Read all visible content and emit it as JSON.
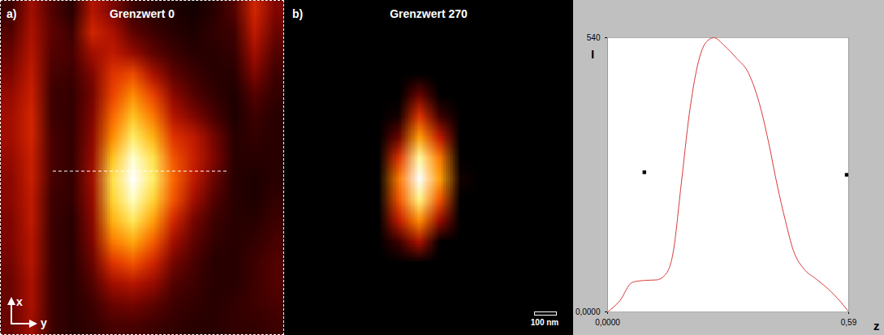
{
  "chart_data": [
    {
      "type": "heatmap",
      "panel": "a)",
      "title": "Grenzwert 0",
      "threshold": 0,
      "color_range": [
        0,
        540
      ],
      "axis_labels": {
        "x": "x",
        "y": "y"
      },
      "cells": [
        [
          60,
          150,
          80,
          40,
          170,
          120,
          60,
          40,
          30,
          20,
          40,
          80,
          200,
          120
        ],
        [
          80,
          160,
          90,
          60,
          200,
          160,
          90,
          60,
          40,
          30,
          50,
          60,
          180,
          100
        ],
        [
          100,
          170,
          80,
          70,
          150,
          180,
          140,
          90,
          60,
          40,
          40,
          50,
          150,
          80
        ],
        [
          120,
          180,
          70,
          60,
          120,
          220,
          250,
          160,
          90,
          60,
          40,
          40,
          120,
          60
        ],
        [
          140,
          190,
          60,
          50,
          110,
          240,
          320,
          240,
          130,
          80,
          50,
          30,
          80,
          50
        ],
        [
          150,
          200,
          60,
          50,
          120,
          280,
          380,
          300,
          170,
          120,
          70,
          30,
          60,
          40
        ],
        [
          150,
          200,
          70,
          50,
          130,
          320,
          440,
          360,
          220,
          180,
          110,
          40,
          50,
          40
        ],
        [
          140,
          190,
          70,
          50,
          140,
          380,
          510,
          420,
          260,
          190,
          120,
          40,
          40,
          40
        ],
        [
          130,
          190,
          70,
          50,
          150,
          420,
          540,
          440,
          280,
          180,
          100,
          40,
          30,
          40
        ],
        [
          130,
          180,
          60,
          50,
          140,
          400,
          500,
          400,
          260,
          150,
          80,
          40,
          30,
          50
        ],
        [
          120,
          180,
          60,
          40,
          130,
          360,
          430,
          340,
          200,
          110,
          60,
          40,
          40,
          60
        ],
        [
          120,
          170,
          60,
          40,
          120,
          300,
          350,
          270,
          150,
          90,
          50,
          40,
          50,
          70
        ],
        [
          110,
          170,
          60,
          40,
          100,
          220,
          260,
          200,
          110,
          70,
          40,
          40,
          60,
          80
        ],
        [
          100,
          160,
          60,
          40,
          80,
          150,
          170,
          140,
          80,
          60,
          40,
          40,
          60,
          80
        ],
        [
          100,
          160,
          60,
          40,
          60,
          100,
          110,
          90,
          60,
          50,
          40,
          50,
          60,
          70
        ],
        [
          100,
          150,
          60,
          40,
          50,
          70,
          70,
          60,
          50,
          40,
          40,
          50,
          50,
          60
        ]
      ]
    },
    {
      "type": "heatmap",
      "panel": "b)",
      "title": "Grenzwert 270",
      "threshold": 270,
      "color_range": [
        270,
        540
      ],
      "scale_bar": "100 nm",
      "cells": [
        [
          60,
          150,
          80,
          40,
          170,
          120,
          60,
          40,
          30,
          20,
          40,
          80,
          200,
          120
        ],
        [
          80,
          160,
          90,
          60,
          200,
          160,
          90,
          60,
          40,
          30,
          50,
          60,
          180,
          100
        ],
        [
          100,
          170,
          80,
          70,
          150,
          180,
          140,
          90,
          60,
          40,
          40,
          50,
          150,
          80
        ],
        [
          120,
          180,
          70,
          60,
          120,
          220,
          250,
          160,
          90,
          60,
          40,
          40,
          120,
          60
        ],
        [
          140,
          190,
          60,
          50,
          110,
          240,
          320,
          240,
          130,
          80,
          50,
          30,
          80,
          50
        ],
        [
          150,
          200,
          60,
          50,
          120,
          280,
          380,
          300,
          170,
          120,
          70,
          30,
          60,
          40
        ],
        [
          150,
          200,
          70,
          50,
          130,
          320,
          440,
          360,
          220,
          180,
          110,
          40,
          50,
          40
        ],
        [
          140,
          190,
          70,
          50,
          140,
          380,
          510,
          420,
          260,
          190,
          120,
          40,
          40,
          40
        ],
        [
          130,
          190,
          70,
          50,
          150,
          420,
          540,
          440,
          280,
          180,
          100,
          40,
          30,
          40
        ],
        [
          130,
          180,
          60,
          50,
          140,
          400,
          500,
          400,
          260,
          150,
          80,
          40,
          30,
          50
        ],
        [
          120,
          180,
          60,
          40,
          130,
          360,
          430,
          340,
          200,
          110,
          60,
          40,
          40,
          60
        ],
        [
          120,
          170,
          60,
          40,
          120,
          300,
          350,
          270,
          150,
          90,
          50,
          40,
          50,
          70
        ],
        [
          110,
          170,
          60,
          40,
          100,
          220,
          260,
          200,
          110,
          70,
          40,
          40,
          60,
          80
        ],
        [
          100,
          160,
          60,
          40,
          80,
          150,
          170,
          140,
          80,
          60,
          40,
          40,
          60,
          80
        ],
        [
          100,
          160,
          60,
          40,
          60,
          100,
          110,
          90,
          60,
          50,
          40,
          50,
          60,
          70
        ],
        [
          100,
          150,
          60,
          40,
          50,
          70,
          70,
          60,
          50,
          40,
          40,
          50,
          50,
          60
        ]
      ]
    },
    {
      "type": "line",
      "x_label": "z",
      "y_label": "I",
      "x": [
        0,
        0.03,
        0.06,
        0.09,
        0.12,
        0.14,
        0.16,
        0.18,
        0.2,
        0.22,
        0.24,
        0.26,
        0.285,
        0.315,
        0.345,
        0.375,
        0.395,
        0.415,
        0.435,
        0.455,
        0.48,
        0.51,
        0.54,
        0.57,
        0.59
      ],
      "values": [
        0,
        22,
        58,
        62,
        63,
        72,
        115,
        250,
        390,
        485,
        530,
        540,
        525,
        500,
        470,
        400,
        330,
        250,
        180,
        120,
        85,
        65,
        45,
        20,
        0
      ],
      "color": "#d83a3a",
      "markers": {
        "x": [
          0.09,
          0.585
        ],
        "values": [
          275,
          270
        ],
        "marker": "square",
        "color": "#000000"
      },
      "xlim": [
        0,
        0.59
      ],
      "xticks": [
        {
          "value": 0,
          "label": "0,0000"
        },
        {
          "value": 0.59,
          "label": "0,59"
        }
      ],
      "ylim": [
        0,
        540
      ],
      "yticks": [
        {
          "value": 0,
          "label": "0,0000"
        },
        540
      ],
      "grid": true
    }
  ]
}
